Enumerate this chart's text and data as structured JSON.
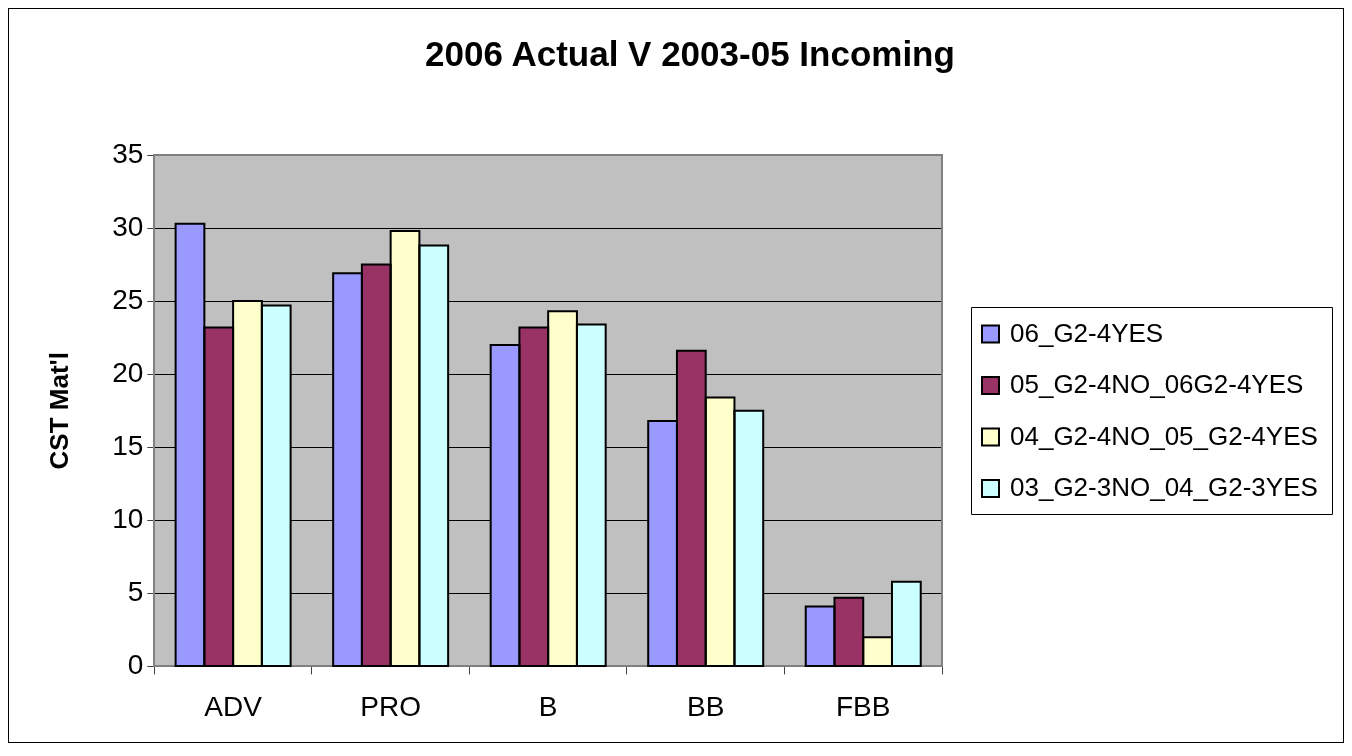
{
  "chart_data": {
    "type": "bar",
    "title": "2006 Actual V 2003-05 Incoming",
    "ylabel": "CST Mat'l",
    "categories": [
      "ADV",
      "PRO",
      "B",
      "BB",
      "FBB"
    ],
    "series": [
      {
        "name": "06_G2-4YES",
        "color": "#9999ff",
        "values": [
          30.3,
          26.9,
          22.0,
          16.8,
          4.1
        ]
      },
      {
        "name": "05_G2-4NO_06G2-4YES",
        "color": "#993366",
        "values": [
          23.2,
          27.5,
          23.2,
          21.6,
          4.7
        ]
      },
      {
        "name": "04_G2-4NO_05_G2-4YES",
        "color": "#ffffcc",
        "values": [
          25.0,
          29.8,
          24.3,
          18.4,
          2.0
        ]
      },
      {
        "name": "03_G2-3NO_04_G2-3YES",
        "color": "#ccffff",
        "values": [
          24.7,
          28.8,
          23.4,
          17.5,
          5.8
        ]
      }
    ],
    "ylim": [
      0,
      35
    ],
    "yticks": [
      0,
      5,
      10,
      15,
      20,
      25,
      30,
      35
    ],
    "grid": "y",
    "legend": "right"
  }
}
